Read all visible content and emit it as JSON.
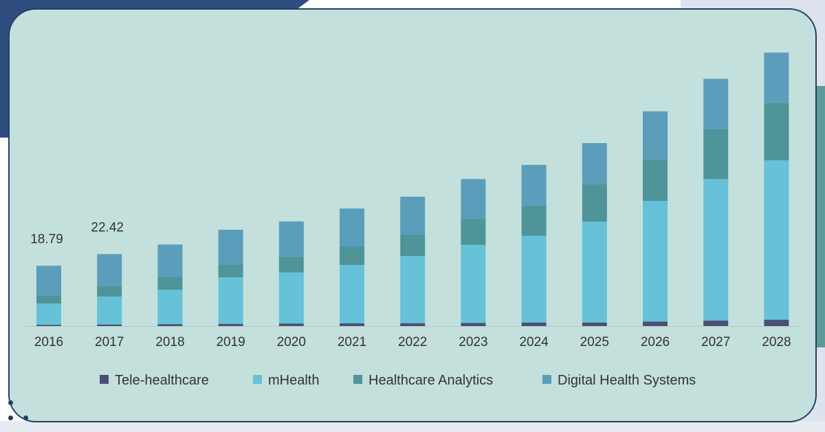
{
  "colors": {
    "card_bg": "#c3e0dc",
    "card_border": "#1f3f66",
    "tele_healthcare": "#4a4f73",
    "mhealth": "#65c2d8",
    "healthcare_analytics": "#4e9498",
    "digital_health_systems": "#5a9ebb"
  },
  "chart_data": {
    "type": "bar",
    "stacked": true,
    "categories": [
      "2016",
      "2017",
      "2018",
      "2019",
      "2020",
      "2021",
      "2022",
      "2023",
      "2024",
      "2025",
      "2026",
      "2027",
      "2028"
    ],
    "series": [
      {
        "name": "Tele-healthcare",
        "color": "#4a4f73",
        "values": [
          0.4,
          0.5,
          0.6,
          0.7,
          0.8,
          0.85,
          0.9,
          1.0,
          1.1,
          1.1,
          1.4,
          1.7,
          2.0
        ]
      },
      {
        "name": "mHealth",
        "color": "#65c2d8",
        "values": [
          6.6,
          8.7,
          10.7,
          14.5,
          15.9,
          18.2,
          20.9,
          24.3,
          27.0,
          31.4,
          37.6,
          44.1,
          49.6
        ]
      },
      {
        "name": "Healthcare Analytics",
        "color": "#4e9498",
        "values": [
          2.6,
          3.3,
          4.0,
          4.0,
          4.9,
          5.7,
          6.6,
          8.1,
          9.3,
          11.7,
          13.0,
          15.5,
          17.9
        ]
      },
      {
        "name": "Digital Health Systems",
        "color": "#5a9ebb",
        "values": [
          9.19,
          9.92,
          10.1,
          10.8,
          11.0,
          11.85,
          11.9,
          12.4,
          12.8,
          12.8,
          14.9,
          15.7,
          15.7
        ]
      }
    ],
    "data_labels": [
      {
        "category": "2016",
        "text": "18.79"
      },
      {
        "category": "2017",
        "text": "22.42"
      }
    ],
    "ylim": [
      0,
      90
    ],
    "grid": false,
    "legend_position": "bottom"
  }
}
